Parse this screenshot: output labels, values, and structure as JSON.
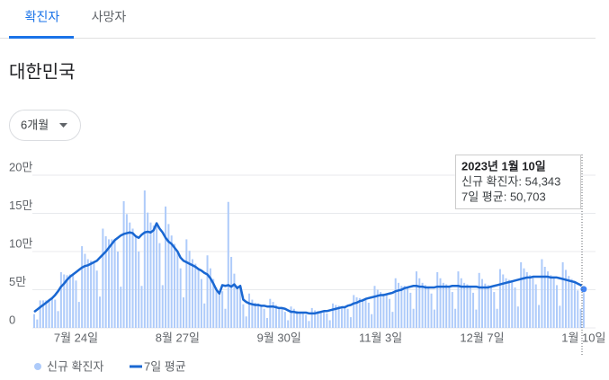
{
  "tabs": [
    "확진자",
    "사망자"
  ],
  "title": "대한민국",
  "dropdown": "6개월",
  "tooltip": {
    "date": "2023년 1월 10일",
    "lines": [
      "신규 확진자: 54,343",
      "7일 평균: 50,703"
    ]
  },
  "chart_data": {
    "type": "combo",
    "categories": [
      null,
      null,
      null,
      null,
      null,
      null,
      null,
      null,
      null,
      null,
      null,
      null,
      null,
      null,
      "7월 24일",
      null,
      null,
      null,
      null,
      null,
      null,
      null,
      null,
      null,
      null,
      null,
      null,
      null,
      null,
      null,
      null,
      null,
      null,
      null,
      null,
      null,
      null,
      null,
      null,
      null,
      null,
      null,
      null,
      null,
      null,
      null,
      null,
      null,
      "8월 27일",
      null,
      null,
      null,
      null,
      null,
      null,
      null,
      null,
      null,
      null,
      null,
      null,
      null,
      null,
      null,
      null,
      null,
      null,
      null,
      null,
      null,
      null,
      null,
      null,
      null,
      null,
      null,
      null,
      null,
      null,
      null,
      null,
      null,
      "9월 30일",
      null,
      null,
      null,
      null,
      null,
      null,
      null,
      null,
      null,
      null,
      null,
      null,
      null,
      null,
      null,
      null,
      null,
      null,
      null,
      null,
      null,
      null,
      null,
      null,
      null,
      null,
      null,
      null,
      null,
      null,
      null,
      null,
      null,
      "11월 3일",
      null,
      null,
      null,
      null,
      null,
      null,
      null,
      null,
      null,
      null,
      null,
      null,
      null,
      null,
      null,
      null,
      null,
      null,
      null,
      null,
      null,
      null,
      null,
      null,
      null,
      null,
      null,
      null,
      null,
      null,
      null,
      null,
      null,
      "12월 7일",
      null,
      null,
      null,
      null,
      null,
      null,
      null,
      null,
      null,
      null,
      null,
      null,
      null,
      null,
      null,
      null,
      null,
      null,
      null,
      null,
      null,
      null,
      null,
      null,
      null,
      null,
      null,
      null,
      null,
      null,
      null,
      null,
      null,
      "1월 10일"
    ],
    "series": [
      {
        "name": "신규 확진자",
        "type": "bar",
        "color": "#aecbfa",
        "values": [
          18000,
          11000,
          36000,
          36000,
          36000,
          38000,
          39000,
          37000,
          22000,
          73000,
          70000,
          69000,
          70000,
          70000,
          62000,
          34000,
          107000,
          97000,
          90000,
          88000,
          86000,
          75000,
          41000,
          130000,
          120000,
          116000,
          116000,
          115000,
          100000,
          54000,
          166000,
          149000,
          138000,
          130000,
          120000,
          100000,
          55000,
          180000,
          151000,
          138000,
          134000,
          137000,
          111000,
          56000,
          159000,
          136000,
          121000,
          110000,
          100000,
          78000,
          40000,
          116000,
          101000,
          90000,
          84000,
          77000,
          64000,
          32000,
          95000,
          78000,
          64000,
          53000,
          45000,
          48000,
          25000,
          165000,
          93000,
          71000,
          55000,
          55000,
          31000,
          15000,
          45000,
          37000,
          33000,
          32000,
          29000,
          25000,
          13000,
          38000,
          34000,
          30000,
          27000,
          26000,
          21000,
          10000,
          28000,
          25000,
          22000,
          21000,
          20000,
          17000,
          9000,
          26000,
          23000,
          22000,
          22000,
          22000,
          19000,
          10000,
          32000,
          30000,
          29000,
          28000,
          27000,
          25000,
          14000,
          43000,
          40000,
          39000,
          38000,
          38000,
          33000,
          18000,
          55000,
          50000,
          47000,
          45000,
          44000,
          38000,
          21000,
          65000,
          59000,
          55000,
          55000,
          53000,
          46000,
          25000,
          74000,
          65000,
          59000,
          56000,
          53000,
          45000,
          24000,
          73000,
          65000,
          59000,
          57000,
          54000,
          47000,
          25000,
          74000,
          65000,
          59000,
          57000,
          54000,
          46000,
          24000,
          72000,
          64000,
          58000,
          56000,
          54000,
          47000,
          25000,
          77000,
          70000,
          65000,
          63000,
          61000,
          53000,
          28000,
          86000,
          78000,
          73000,
          69000,
          67000,
          57000,
          30000,
          90000,
          80000,
          74000,
          69000,
          66000,
          56000,
          29000,
          86000,
          76000,
          68000,
          64000,
          60000,
          49000,
          25000,
          54343
        ]
      },
      {
        "name": "7일 평균",
        "type": "line",
        "color": "#1967d2",
        "values": [
          21000,
          24000,
          27000,
          30000,
          33000,
          36000,
          39000,
          43000,
          48000,
          54000,
          58000,
          63000,
          67000,
          70000,
          73000,
          76000,
          79000,
          81000,
          82000,
          84000,
          86000,
          88000,
          92000,
          96000,
          100000,
          105000,
          110000,
          115000,
          118000,
          121000,
          123000,
          124000,
          125000,
          124000,
          120000,
          118000,
          122000,
          125000,
          126000,
          125000,
          128000,
          137000,
          130000,
          125000,
          118000,
          113000,
          110000,
          105000,
          100000,
          92000,
          88000,
          86000,
          84000,
          82000,
          80000,
          77000,
          75000,
          72000,
          70000,
          65000,
          58000,
          50000,
          45000,
          56000,
          55000,
          56000,
          54000,
          57000,
          52000,
          55000,
          37000,
          34000,
          32000,
          31000,
          30000,
          30000,
          29000,
          29000,
          28000,
          28000,
          28000,
          27000,
          26000,
          26000,
          25000,
          23000,
          21000,
          21000,
          20000,
          20000,
          20000,
          20000,
          19000,
          19000,
          19000,
          20000,
          21000,
          22000,
          22000,
          23000,
          24000,
          25000,
          26000,
          27000,
          27000,
          29000,
          30000,
          32000,
          33000,
          35000,
          36000,
          38000,
          39000,
          40000,
          41000,
          42000,
          43000,
          43000,
          44000,
          45000,
          46000,
          48000,
          49000,
          50000,
          52000,
          53000,
          54000,
          55000,
          55000,
          54000,
          54000,
          53000,
          53000,
          53000,
          53000,
          54000,
          54000,
          54000,
          54000,
          54000,
          55000,
          55000,
          55000,
          54000,
          54000,
          54000,
          54000,
          54000,
          54000,
          53000,
          53000,
          53000,
          53000,
          54000,
          55000,
          56000,
          57000,
          58000,
          59000,
          60000,
          61000,
          62000,
          63000,
          64000,
          65000,
          66000,
          66000,
          67000,
          67000,
          67000,
          67000,
          67000,
          67000,
          66000,
          66000,
          66000,
          65000,
          64000,
          63000,
          62000,
          61000,
          60000,
          58000,
          56000,
          50703
        ]
      }
    ],
    "ylim": [
      0,
      200000
    ],
    "yticks": [
      0,
      {
        "value": 50000,
        "label": "5만"
      },
      {
        "value": 100000,
        "label": "10만"
      },
      {
        "value": 150000,
        "label": "15만"
      },
      {
        "value": 200000,
        "label": "20만"
      }
    ],
    "grid": true,
    "legend": "bottom-left"
  }
}
